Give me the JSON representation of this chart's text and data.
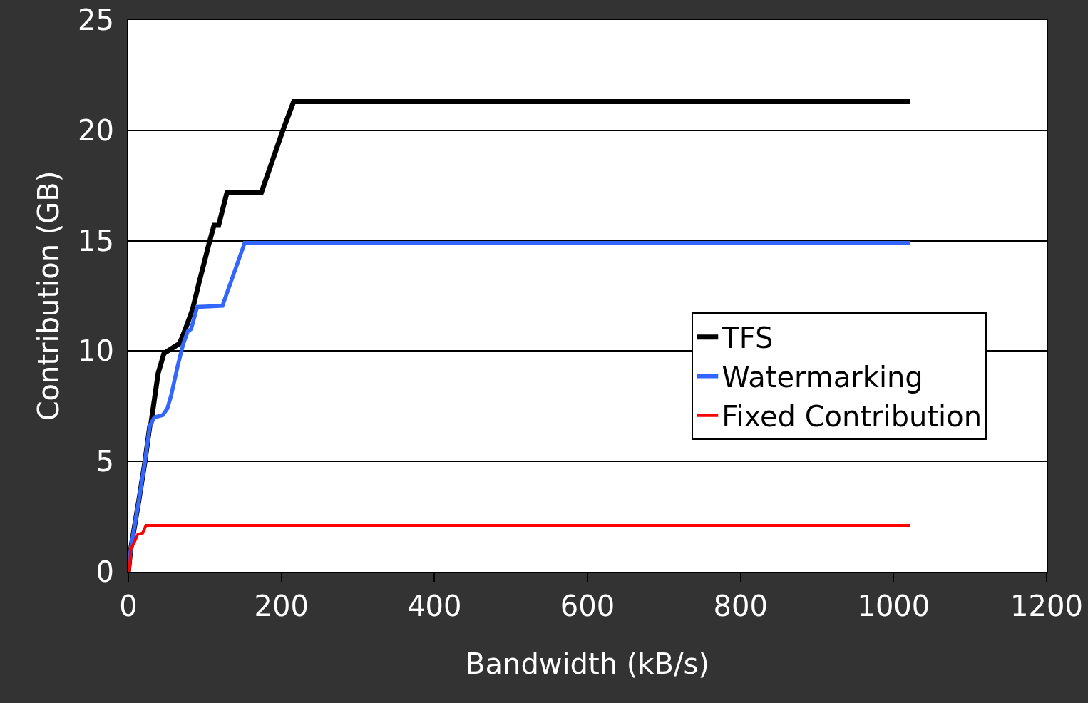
{
  "chart_data": {
    "type": "line",
    "xlabel": "Bandwidth (kB/s)",
    "ylabel": "Contribution (GB)",
    "xlim": [
      0,
      1200
    ],
    "xticks": [
      0,
      200,
      400,
      600,
      800,
      1000,
      1200
    ],
    "ylim": [
      0,
      25
    ],
    "yticks": [
      0,
      5,
      10,
      15,
      20,
      25
    ],
    "grid": "y",
    "legend": "right",
    "marker": "none",
    "line_style": "solid",
    "series": [
      {
        "name": "TFS",
        "color": "#000000",
        "x": [
          0,
          3,
          14,
          21.7,
          28,
          29.5,
          34,
          39,
          46.6,
          56,
          67,
          74.6,
          84,
          91.7,
          105.7,
          112,
          118,
          129,
          174,
          202,
          216,
          1022
        ],
        "values": [
          0,
          1.0,
          3.3,
          5.0,
          6.6,
          6.7,
          7.8,
          9.0,
          9.9,
          10.1,
          10.35,
          11.0,
          11.9,
          13.0,
          14.9,
          15.7,
          15.7,
          17.2,
          17.2,
          20.0,
          21.3,
          21.3
        ]
      },
      {
        "name": "Watermarking",
        "color": "#3366ff",
        "x": [
          0,
          3,
          14,
          21.7,
          28,
          34,
          45,
          51,
          56,
          65,
          71.5,
          77.7,
          82,
          90,
          123,
          152,
          1022
        ],
        "values": [
          0,
          1.0,
          3.3,
          5.0,
          6.6,
          7.0,
          7.1,
          7.4,
          8.0,
          9.4,
          10.3,
          10.9,
          11.0,
          12.0,
          12.05,
          14.9,
          14.9
        ]
      },
      {
        "name": "Fixed Contribution",
        "color": "#ff0000",
        "x": [
          0,
          1.5,
          3,
          8,
          12.4,
          18.6,
          23,
          1022
        ],
        "values": [
          0,
          0.06,
          1.0,
          1.35,
          1.7,
          1.75,
          2.1,
          2.1
        ]
      }
    ]
  }
}
